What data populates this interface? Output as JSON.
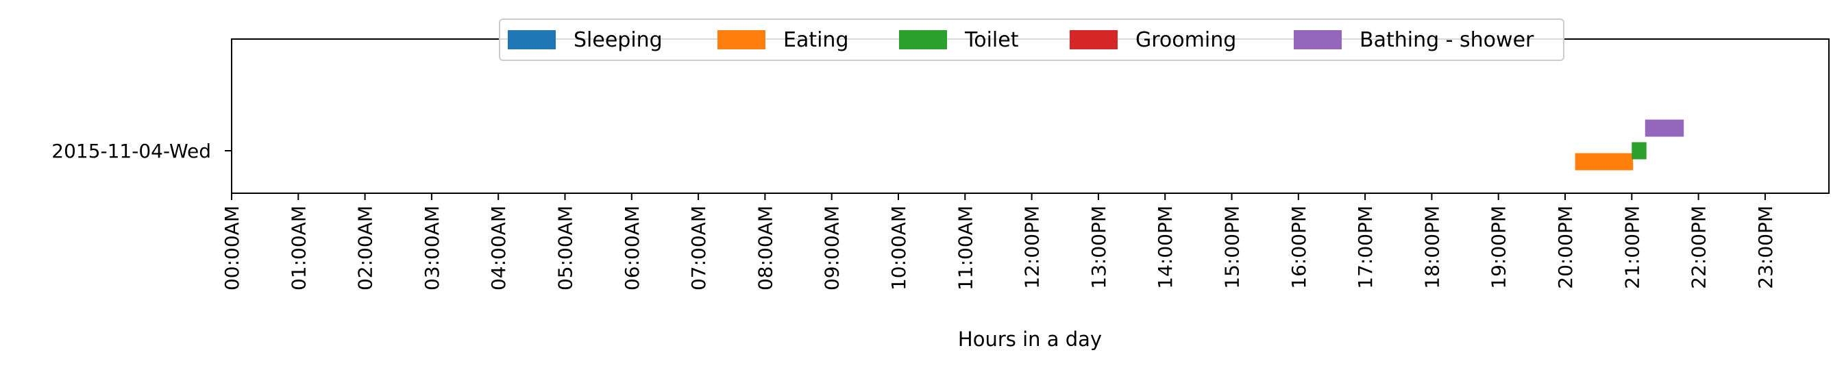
{
  "chart_data": {
    "type": "timeline",
    "xlabel": "Hours in a day",
    "xlim": [
      0,
      24
    ],
    "x_ticks": [
      {
        "value": 0,
        "label": "00:00AM"
      },
      {
        "value": 1,
        "label": "01:00AM"
      },
      {
        "value": 2,
        "label": "02:00AM"
      },
      {
        "value": 3,
        "label": "03:00AM"
      },
      {
        "value": 4,
        "label": "04:00AM"
      },
      {
        "value": 5,
        "label": "05:00AM"
      },
      {
        "value": 6,
        "label": "06:00AM"
      },
      {
        "value": 7,
        "label": "07:00AM"
      },
      {
        "value": 8,
        "label": "08:00AM"
      },
      {
        "value": 9,
        "label": "09:00AM"
      },
      {
        "value": 10,
        "label": "10:00AM"
      },
      {
        "value": 11,
        "label": "11:00AM"
      },
      {
        "value": 12,
        "label": "12:00PM"
      },
      {
        "value": 13,
        "label": "13:00PM"
      },
      {
        "value": 14,
        "label": "14:00PM"
      },
      {
        "value": 15,
        "label": "15:00PM"
      },
      {
        "value": 16,
        "label": "16:00PM"
      },
      {
        "value": 17,
        "label": "17:00PM"
      },
      {
        "value": 18,
        "label": "18:00PM"
      },
      {
        "value": 19,
        "label": "19:00PM"
      },
      {
        "value": 20,
        "label": "20:00PM"
      },
      {
        "value": 21,
        "label": "21:00PM"
      },
      {
        "value": 22,
        "label": "22:00PM"
      },
      {
        "value": 23,
        "label": "23:00PM"
      }
    ],
    "rows": [
      "2015-11-04-Wed"
    ],
    "legend_position": "top-center",
    "legend": [
      {
        "name": "Sleeping",
        "color": "#1f77b4"
      },
      {
        "name": "Eating",
        "color": "#ff7f0e"
      },
      {
        "name": "Toilet",
        "color": "#2ca02c"
      },
      {
        "name": "Grooming",
        "color": "#d62728"
      },
      {
        "name": "Bathing - shower",
        "color": "#9467bd"
      }
    ],
    "activities": [
      {
        "row": "2015-11-04-Wed",
        "activity": "Eating",
        "start": 20.15,
        "end": 21.02
      },
      {
        "row": "2015-11-04-Wed",
        "activity": "Toilet",
        "start": 21.0,
        "end": 21.22
      },
      {
        "row": "2015-11-04-Wed",
        "activity": "Bathing - shower",
        "start": 21.2,
        "end": 21.78
      }
    ]
  }
}
